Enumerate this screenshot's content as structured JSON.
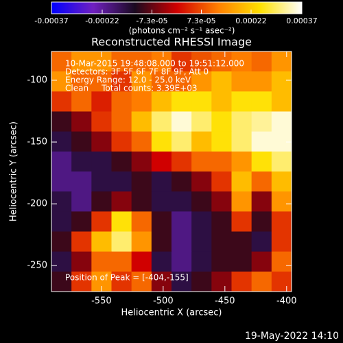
{
  "chart_data": {
    "type": "heatmap",
    "title": "Reconstructed RHESSI Image",
    "x_label": "Heliocentric X (arcsec)",
    "y_label": "Heliocentric Y (arcsec)",
    "colorbar_label": "(photons cm⁻² s⁻¹ asec⁻²)",
    "annotations": [
      "10-Mar-2015 19:48:08.000 to 19:51:12.000",
      "Detectors: 3F 5F 6F 7F 8F 9F, Att 0",
      "Energy Range: 12.0 - 25.0 keV",
      "Clean     Total counts: 3.39E+03"
    ],
    "peak_label": "Position of Peak = [-404,-155]",
    "footer": "19-May-2022 14:10",
    "xlim": [
      -590.5,
      -396
    ],
    "ylim": [
      -271,
      -76.7
    ],
    "xticks": [
      -550,
      -500,
      -450,
      -400
    ],
    "yticks": [
      -250,
      -200,
      -150,
      -100
    ],
    "zlim": [
      -0.00037,
      0.00037
    ],
    "zticks": [
      -0.00037,
      -0.00022,
      {
        "value": -7.3e-05,
        "label": "-7.3e-05"
      },
      {
        "value": 7.3e-05,
        "label": "7.3e-05"
      },
      0.00022,
      0.00037
    ],
    "colormap": [
      "#0000ff",
      "#7020c0",
      "#1a0a20",
      "#d00000",
      "#ff8000",
      "#ffe000",
      "#ffffff"
    ],
    "z": [
      [
        0.0001,
        0.00015,
        0.00015,
        0.0001,
        0.0001,
        0.00012,
        5e-05,
        8e-05,
        0.0001,
        0.00012,
        0.0001,
        0.00015
      ],
      [
        0.00015,
        0.0001,
        0.0001,
        5e-05,
        0.00015,
        0.0001,
        0.0001,
        0.00015,
        0.0002,
        0.00015,
        0.00015,
        0.0002
      ],
      [
        5e-05,
        0.0001,
        3e-05,
        0.0001,
        0.00012,
        0.0002,
        0.00025,
        0.00025,
        0.0002,
        0.00025,
        0.00025,
        0.0002
      ],
      [
        -0.0001,
        -5e-05,
        5e-05,
        0.0001,
        0.0002,
        0.0003,
        0.00035,
        0.0003,
        0.00025,
        0.0003,
        0.00032,
        0.00035
      ],
      [
        -0.00015,
        -0.0001,
        -5e-05,
        5e-05,
        0.0001,
        0.00025,
        0.0003,
        0.0002,
        0.00025,
        0.0003,
        0.00035,
        0.00035
      ],
      [
        -0.0002,
        -0.00015,
        -0.00015,
        -0.0001,
        -5e-05,
        0,
        5e-05,
        0.0001,
        0.0001,
        0.00015,
        0.00025,
        0.0003
      ],
      [
        -0.0002,
        -0.0002,
        -0.00015,
        -0.00015,
        -0.0001,
        -0.00015,
        -0.0001,
        -5e-05,
        5e-05,
        0.0002,
        0.0001,
        0.0002
      ],
      [
        -0.00015,
        -0.0002,
        -0.0001,
        -5e-05,
        -0.0001,
        -0.00015,
        -0.00015,
        -0.0001,
        -5e-05,
        0.00015,
        -5e-05,
        0.00015
      ],
      [
        -0.00015,
        -0.0001,
        5e-05,
        0.00025,
        0.0001,
        -0.0001,
        -0.0002,
        -0.00015,
        -0.0001,
        5e-05,
        -0.0001,
        5e-05
      ],
      [
        -0.0001,
        5e-05,
        0.0002,
        0.0003,
        0.00015,
        -0.0001,
        -0.0002,
        -0.00015,
        -0.0001,
        -0.0001,
        -0.00015,
        5e-05
      ],
      [
        -0.00015,
        -5e-05,
        0.0001,
        0.0001,
        0,
        -0.00015,
        -0.0002,
        -0.00015,
        -0.0001,
        -0.0001,
        -5e-05,
        0.0001
      ],
      [
        -0.0001,
        5e-05,
        0.00015,
        5e-05,
        0.0001,
        -5e-05,
        -0.00015,
        -0.0001,
        -5e-05,
        5e-05,
        0.0001,
        5e-05
      ]
    ]
  }
}
